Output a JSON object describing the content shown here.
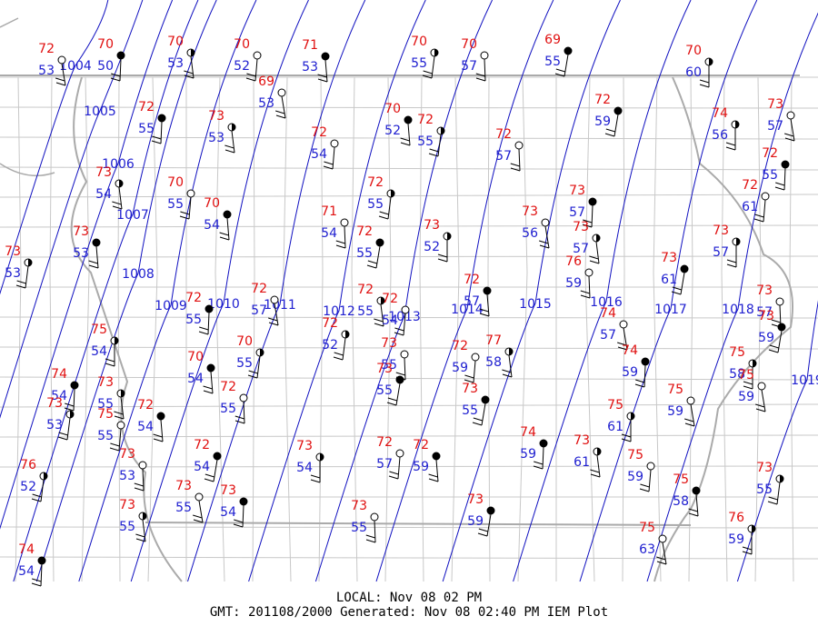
{
  "stations": [
    {
      "temp": 72,
      "dew": 53
    },
    {
      "temp": 70,
      "dew": 50
    },
    {
      "temp": 70,
      "dew": 53
    },
    {
      "temp": 70,
      "dew": 52
    },
    {
      "temp": 71,
      "dew": 53
    },
    {
      "temp": 70,
      "dew": 55
    },
    {
      "temp": 70,
      "dew": 57
    },
    {
      "temp": 69,
      "dew": 55
    },
    {
      "temp": 70,
      "dew": 60
    },
    {
      "temp": 69,
      "dew": 53
    },
    {
      "temp": 72,
      "dew": 55
    },
    {
      "temp": 73,
      "dew": 53
    },
    {
      "temp": 72,
      "dew": 54
    },
    {
      "temp": 70,
      "dew": 52
    },
    {
      "temp": 72,
      "dew": 55
    },
    {
      "temp": 72,
      "dew": 57
    },
    {
      "temp": 72,
      "dew": 59
    },
    {
      "temp": 74,
      "dew": 56
    },
    {
      "temp": 73,
      "dew": 57
    },
    {
      "temp": 72,
      "dew": 55
    },
    {
      "temp": 73,
      "dew": 54
    },
    {
      "temp": 70,
      "dew": 55
    },
    {
      "temp": 70,
      "dew": 54
    },
    {
      "temp": 72,
      "dew": 55
    },
    {
      "temp": 71,
      "dew": 54
    },
    {
      "temp": 72,
      "dew": 55
    },
    {
      "temp": 73,
      "dew": 52
    },
    {
      "temp": 73,
      "dew": 56
    },
    {
      "temp": 73,
      "dew": 57
    },
    {
      "temp": 73,
      "dew": 57
    },
    {
      "temp": 72,
      "dew": 61
    },
    {
      "temp": 73,
      "dew": 53
    },
    {
      "temp": 73,
      "dew": 53
    },
    {
      "temp": 76,
      "dew": 59
    },
    {
      "temp": 73,
      "dew": 61
    },
    {
      "temp": 73,
      "dew": 57
    },
    {
      "temp": 72,
      "dew": 57
    },
    {
      "temp": 72,
      "dew": 55
    },
    {
      "temp": 72,
      "dew": 55
    },
    {
      "temp": 72,
      "dew": 54
    },
    {
      "temp": 72,
      "dew": 57
    },
    {
      "temp": 72,
      "dew": 52
    },
    {
      "temp": 73,
      "dew": 57
    },
    {
      "temp": 73,
      "dew": 59
    },
    {
      "temp": 75,
      "dew": 54
    },
    {
      "temp": 74,
      "dew": 57
    },
    {
      "temp": 74,
      "dew": 59
    },
    {
      "temp": 77,
      "dew": 58
    },
    {
      "temp": 72,
      "dew": 59
    },
    {
      "temp": 70,
      "dew": 54
    },
    {
      "temp": 70,
      "dew": 55
    },
    {
      "temp": 73,
      "dew": 55
    },
    {
      "temp": 73,
      "dew": 55
    },
    {
      "temp": 75,
      "dew": 58
    },
    {
      "temp": 75,
      "dew": 59
    },
    {
      "temp": 74,
      "dew": 54
    },
    {
      "temp": 73,
      "dew": 55
    },
    {
      "temp": 75,
      "dew": 55
    },
    {
      "temp": 72,
      "dew": 54
    },
    {
      "temp": 73,
      "dew": 53
    },
    {
      "temp": 72,
      "dew": 55
    },
    {
      "temp": 73,
      "dew": 55
    },
    {
      "temp": 75,
      "dew": 61
    },
    {
      "temp": 75,
      "dew": 59
    },
    {
      "temp": 74,
      "dew": 59
    },
    {
      "temp": 73,
      "dew": 61
    },
    {
      "temp": 72,
      "dew": 57
    },
    {
      "temp": 72,
      "dew": 59
    },
    {
      "temp": 76,
      "dew": 52
    },
    {
      "temp": 73,
      "dew": 53
    },
    {
      "temp": 72,
      "dew": 54
    },
    {
      "temp": 73,
      "dew": 54
    },
    {
      "temp": 73,
      "dew": 55
    },
    {
      "temp": 73,
      "dew": 54
    },
    {
      "temp": 73,
      "dew": 55
    },
    {
      "temp": 75,
      "dew": 59
    },
    {
      "temp": 75,
      "dew": 58
    },
    {
      "temp": 73,
      "dew": 55
    },
    {
      "temp": 73,
      "dew": 55
    },
    {
      "temp": 73,
      "dew": 59
    },
    {
      "temp": 76,
      "dew": 59
    },
    {
      "temp": 75,
      "dew": 63
    },
    {
      "temp": 74,
      "dew": 54
    }
  ],
  "isobars": [
    1004,
    1005,
    1006,
    1007,
    1008,
    1009,
    1010,
    1011,
    1012,
    1013,
    1014,
    1015,
    1016,
    1017,
    1018,
    1019
  ],
  "footer": {
    "local": "LOCAL: Nov 08 02 PM",
    "generated": "GMT: 201108/2000 Generated: Nov 08 02:40 PM IEM Plot"
  }
}
